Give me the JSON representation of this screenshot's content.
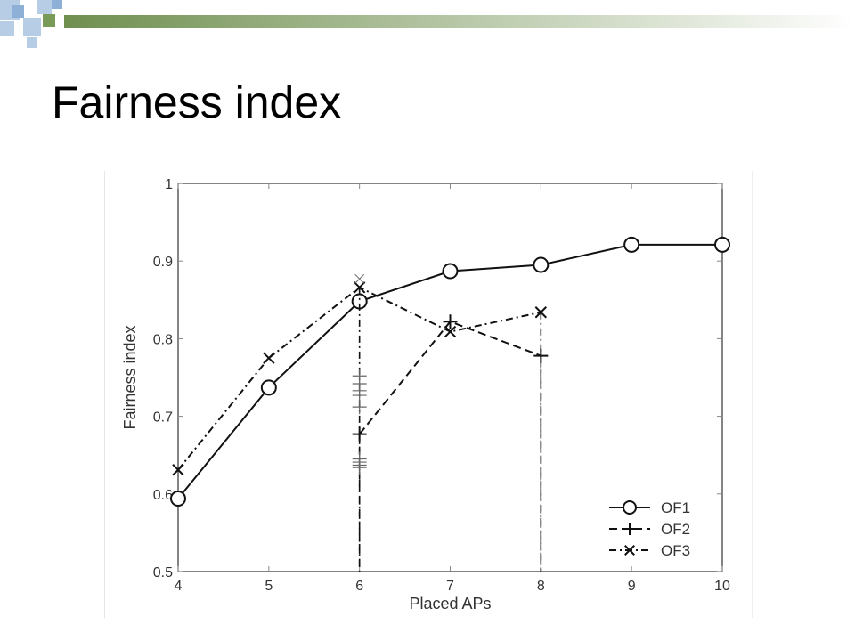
{
  "slide": {
    "title": "Fairness index"
  },
  "colors": {
    "header_gradient_start": "#6f8f4f",
    "header_gradient_end": "#ffffff",
    "deco_blue_light": "#b7cde6",
    "deco_blue_mid": "#8fb0d6",
    "deco_green": "#7a9a5a",
    "series_stroke": "#111111",
    "grid": "#888888"
  },
  "chart_data": {
    "type": "line",
    "title": "",
    "xlabel": "Placed APs",
    "ylabel": "Fairness index",
    "xlim": [
      4,
      10
    ],
    "ylim": [
      0.5,
      1
    ],
    "xticks": [
      "4",
      "5",
      "6",
      "7",
      "8",
      "9",
      "10"
    ],
    "yticks": [
      "0.5",
      "0.6",
      "0.7",
      "0.8",
      "0.9",
      "1"
    ],
    "grid": false,
    "legend_position": "bottom-right",
    "series": [
      {
        "name": "OF1",
        "marker": "circle",
        "line_style": "solid",
        "x": [
          4,
          5,
          6,
          7,
          8,
          9,
          10
        ],
        "y": [
          0.594,
          0.737,
          0.848,
          0.887,
          0.895,
          0.921,
          0.921
        ]
      },
      {
        "name": "OF2",
        "marker": "plus",
        "line_style": "dashed",
        "x": [
          6,
          7,
          8
        ],
        "y": [
          0.677,
          0.822,
          0.778
        ],
        "drop_lines": [
          {
            "x": 6,
            "from": 0.677,
            "to": 0.5
          },
          {
            "x": 8,
            "from": 0.778,
            "to": 0.5
          }
        ]
      },
      {
        "name": "OF3",
        "marker": "x",
        "line_style": "dash-dot",
        "x": [
          4,
          5,
          6,
          7,
          8
        ],
        "y": [
          0.631,
          0.775,
          0.866,
          0.809,
          0.834
        ],
        "drop_lines": [
          {
            "x": 6,
            "from": 0.866,
            "to": 0.5
          },
          {
            "x": 8,
            "from": 0.834,
            "to": 0.5
          }
        ]
      }
    ],
    "scatter_samples": {
      "marker": "plus",
      "x": 6,
      "y": [
        0.752,
        0.742,
        0.733,
        0.727,
        0.712,
        0.645,
        0.641,
        0.637,
        0.634
      ]
    },
    "extra_points": [
      {
        "marker": "x",
        "x": 6,
        "y": 0.877
      }
    ]
  }
}
